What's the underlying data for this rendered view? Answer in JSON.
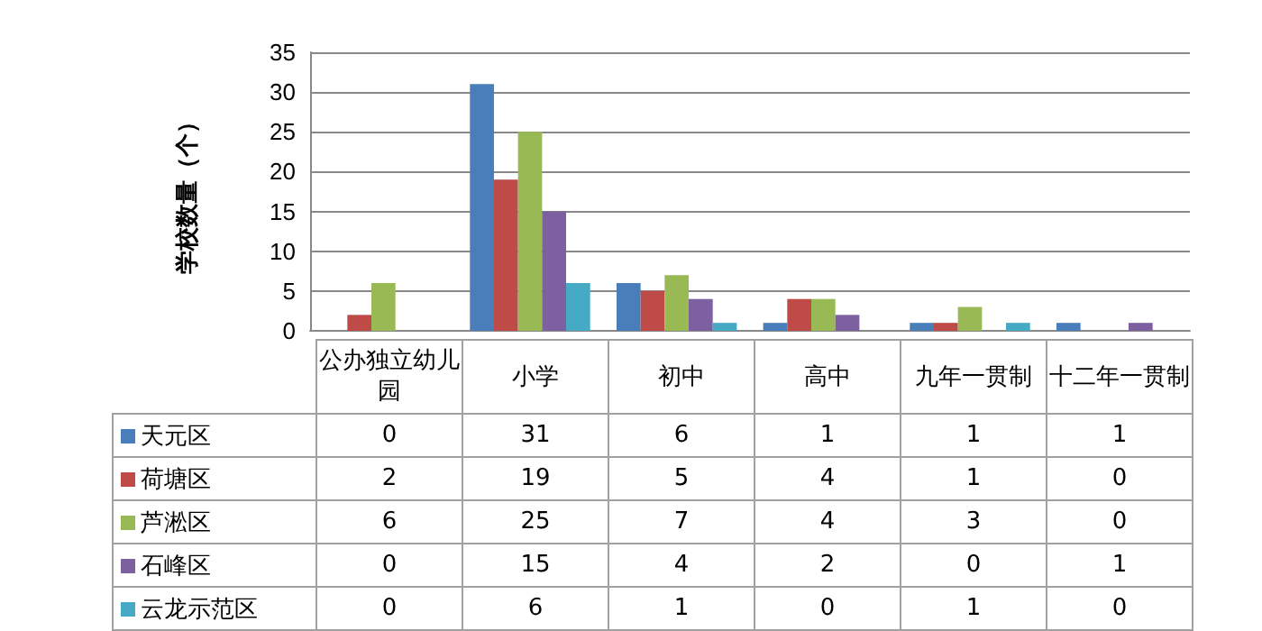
{
  "chart_data": {
    "type": "bar",
    "ylabel": "学校数量（个）",
    "categories": [
      "公办独立幼儿园",
      "小学",
      "初中",
      "高中",
      "九年一贯制",
      "十二年一贯制"
    ],
    "series": [
      {
        "name": "天元区",
        "color": "#4a7ebb",
        "values": [
          0,
          31,
          6,
          1,
          1,
          1
        ]
      },
      {
        "name": "荷塘区",
        "color": "#be4b48",
        "values": [
          2,
          19,
          5,
          4,
          1,
          0
        ]
      },
      {
        "name": "芦淞区",
        "color": "#98b954",
        "values": [
          6,
          25,
          7,
          4,
          3,
          0
        ]
      },
      {
        "name": "石峰区",
        "color": "#7d60a0",
        "values": [
          0,
          15,
          4,
          2,
          0,
          1
        ]
      },
      {
        "name": "云龙示范区",
        "color": "#46aac5",
        "values": [
          0,
          6,
          1,
          0,
          1,
          0
        ]
      }
    ],
    "ylim": [
      0,
      35
    ],
    "yticks": [
      0,
      5,
      10,
      15,
      20,
      25,
      30,
      35
    ],
    "grid": "y",
    "legend": "left",
    "data_labels": true
  }
}
